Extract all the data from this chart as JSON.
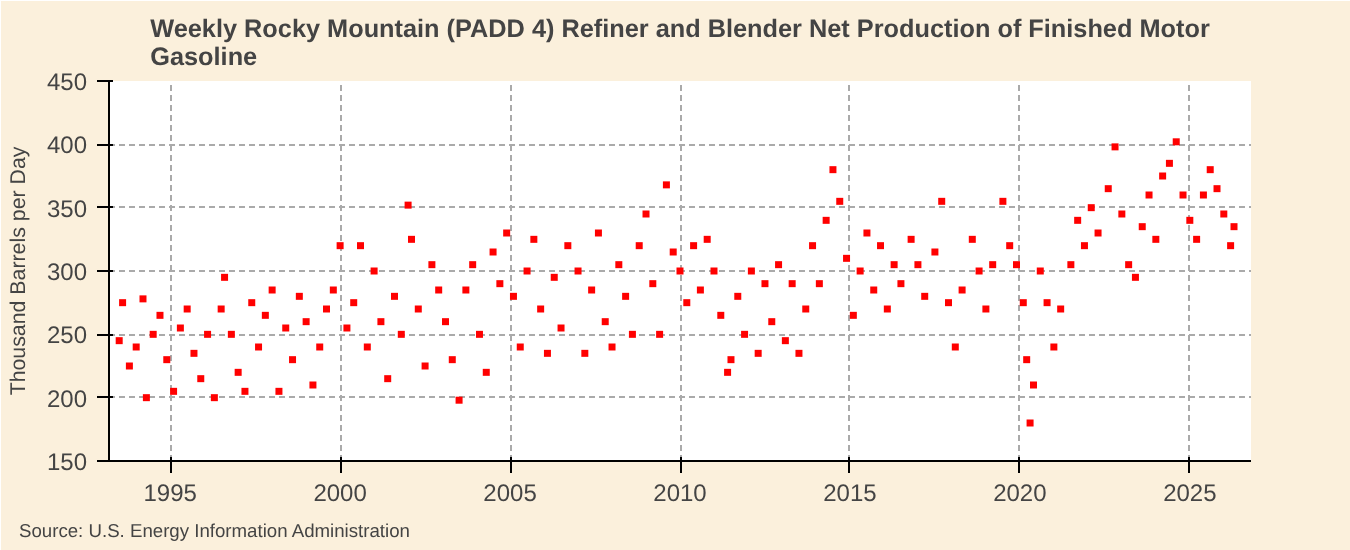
{
  "chart_data": {
    "type": "scatter",
    "title": "Weekly Rocky Mountain (PADD 4) Refiner and Blender Net Production of Finished Motor Gasoline",
    "ylabel": "Thousand Barrels per Day",
    "annotations": [
      "Source: U.S. Energy Information Administration"
    ],
    "x": [
      1993.5,
      1993.6,
      1993.8,
      1994.0,
      1994.2,
      1994.3,
      1994.5,
      1994.7,
      1994.9,
      1995.1,
      1995.3,
      1995.5,
      1995.7,
      1995.9,
      1996.1,
      1996.3,
      1996.5,
      1996.6,
      1996.8,
      1997.0,
      1997.2,
      1997.4,
      1997.6,
      1997.8,
      1998.0,
      1998.2,
      1998.4,
      1998.6,
      1998.8,
      1999.0,
      1999.2,
      1999.4,
      1999.6,
      1999.8,
      2000.0,
      2000.2,
      2000.4,
      2000.6,
      2000.8,
      2001.0,
      2001.2,
      2001.4,
      2001.6,
      2001.8,
      2002.0,
      2002.1,
      2002.3,
      2002.5,
      2002.7,
      2002.9,
      2003.1,
      2003.3,
      2003.5,
      2003.7,
      2003.9,
      2004.1,
      2004.3,
      2004.5,
      2004.7,
      2004.9,
      2005.1,
      2005.3,
      2005.5,
      2005.7,
      2005.9,
      2006.1,
      2006.3,
      2006.5,
      2006.7,
      2007.0,
      2007.2,
      2007.4,
      2007.6,
      2007.8,
      2008.0,
      2008.2,
      2008.4,
      2008.6,
      2008.8,
      2009.0,
      2009.2,
      2009.4,
      2009.6,
      2009.8,
      2010.0,
      2010.2,
      2010.4,
      2010.6,
      2010.8,
      2011.0,
      2011.2,
      2011.4,
      2011.5,
      2011.7,
      2011.9,
      2012.1,
      2012.3,
      2012.5,
      2012.7,
      2012.9,
      2013.1,
      2013.3,
      2013.5,
      2013.7,
      2013.9,
      2014.1,
      2014.3,
      2014.5,
      2014.7,
      2014.9,
      2015.1,
      2015.3,
      2015.5,
      2015.7,
      2015.9,
      2016.1,
      2016.3,
      2016.5,
      2016.8,
      2017.0,
      2017.2,
      2017.5,
      2017.7,
      2017.9,
      2018.1,
      2018.3,
      2018.6,
      2018.8,
      2019.0,
      2019.2,
      2019.5,
      2019.7,
      2019.9,
      2020.1,
      2020.2,
      2020.3,
      2020.4,
      2020.6,
      2020.8,
      2021.0,
      2021.2,
      2021.5,
      2021.7,
      2021.9,
      2022.1,
      2022.3,
      2022.6,
      2022.8,
      2023.0,
      2023.2,
      2023.4,
      2023.6,
      2023.8,
      2024.0,
      2024.2,
      2024.4,
      2024.6,
      2024.8,
      2025.0,
      2025.2,
      2025.4,
      2025.6,
      2025.8,
      2026.0,
      2026.2,
      2026.3
    ],
    "series": [
      {
        "color": "#ff0000",
        "values": [
          245,
          275,
          225,
          240,
          278,
          200,
          250,
          265,
          230,
          205,
          255,
          270,
          235,
          215,
          250,
          200,
          270,
          295,
          250,
          220,
          205,
          275,
          240,
          265,
          285,
          205,
          255,
          230,
          280,
          260,
          210,
          240,
          270,
          285,
          320,
          255,
          275,
          320,
          240,
          300,
          260,
          215,
          280,
          250,
          352,
          325,
          270,
          225,
          305,
          285,
          260,
          230,
          198,
          285,
          305,
          250,
          220,
          315,
          290,
          330,
          280,
          240,
          300,
          325,
          270,
          235,
          295,
          255,
          320,
          300,
          235,
          285,
          330,
          260,
          240,
          305,
          280,
          250,
          320,
          345,
          290,
          250,
          368,
          315,
          300,
          275,
          320,
          285,
          325,
          300,
          265,
          220,
          230,
          280,
          250,
          300,
          235,
          290,
          260,
          305,
          245,
          290,
          235,
          270,
          320,
          290,
          340,
          380,
          355,
          310,
          265,
          300,
          330,
          285,
          320,
          270,
          305,
          290,
          325,
          305,
          280,
          315,
          355,
          275,
          240,
          285,
          325,
          300,
          270,
          305,
          355,
          320,
          305,
          275,
          230,
          180,
          210,
          300,
          275,
          240,
          270,
          305,
          340,
          320,
          350,
          330,
          365,
          398,
          345,
          305,
          295,
          335,
          360,
          325,
          375,
          385,
          402,
          360,
          340,
          325,
          360,
          380,
          365,
          345,
          320,
          335
        ]
      }
    ],
    "xlim": [
      1993.2,
      2026.8
    ],
    "xticks": [
      1995,
      2000,
      2005,
      2010,
      2015,
      2020,
      2025
    ],
    "ylim": [
      150,
      450
    ],
    "yticks": [
      150,
      200,
      250,
      300,
      350,
      400,
      450
    ],
    "grid": true,
    "marker": "square"
  }
}
